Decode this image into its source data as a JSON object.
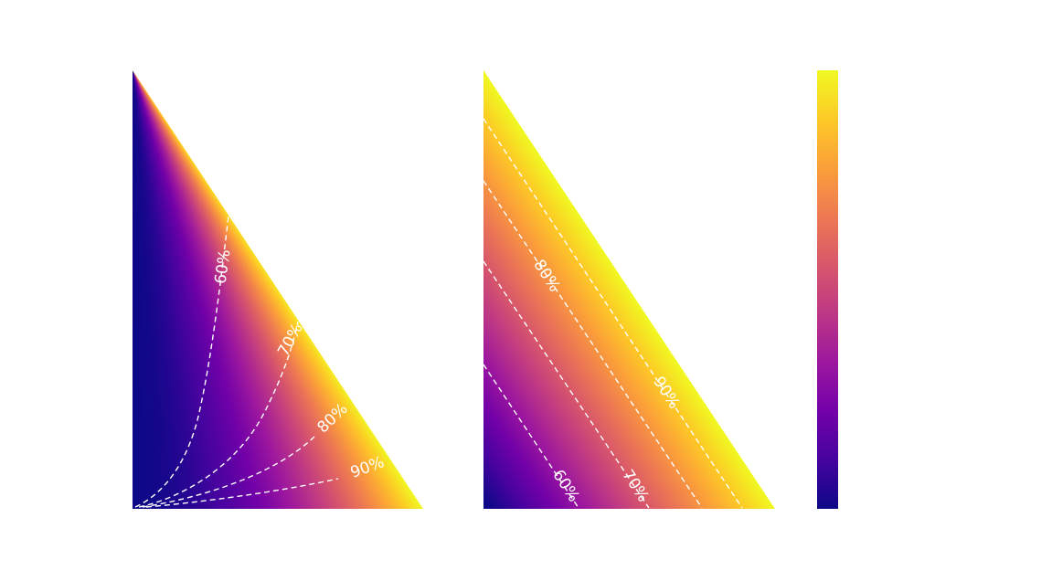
{
  "colormap": {
    "name": "plasma",
    "stops": [
      "#0d0887",
      "#46039f",
      "#7201a8",
      "#9c179e",
      "#bd3786",
      "#d8576b",
      "#ed7953",
      "#fb9f3a",
      "#fdca26",
      "#f0f921"
    ]
  },
  "chart_data": [
    {
      "type": "heatmap",
      "panel": "left",
      "title": "",
      "contour_levels": [
        {
          "level": 0.6,
          "label": "60%"
        },
        {
          "level": 0.7,
          "label": "70%"
        },
        {
          "level": 0.8,
          "label": "80%"
        },
        {
          "level": 0.9,
          "label": "90%"
        }
      ]
    },
    {
      "type": "heatmap",
      "panel": "right",
      "title": "",
      "contour_levels": [
        {
          "level": 0.6,
          "label": "60%"
        },
        {
          "level": 0.7,
          "label": "70%"
        },
        {
          "level": 0.8,
          "label": "80%"
        },
        {
          "level": 0.9,
          "label": "90%"
        }
      ]
    }
  ],
  "colorbar": {
    "tick_labels": []
  }
}
